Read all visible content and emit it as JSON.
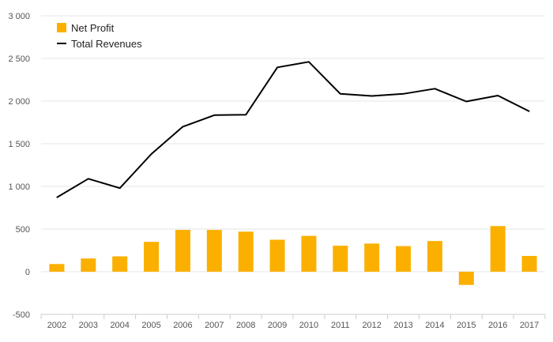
{
  "chart_data": {
    "type": "bar+line",
    "title": "",
    "xlabel": "",
    "ylabel": "",
    "categories": [
      "2002",
      "2003",
      "2004",
      "2005",
      "2006",
      "2007",
      "2008",
      "2009",
      "2010",
      "2011",
      "2012",
      "2013",
      "2014",
      "2015",
      "2016",
      "2017"
    ],
    "ylim": [
      -500,
      3000
    ],
    "yticks": [
      -500,
      0,
      500,
      1000,
      1500,
      2000,
      2500,
      3000
    ],
    "ytick_labels": [
      "-500",
      "0",
      "500",
      "1 000",
      "1 500",
      "2 000",
      "2 500",
      "3 000"
    ],
    "grid": true,
    "legend_position": "top-left",
    "series": [
      {
        "name": "Net Profit",
        "kind": "bar",
        "color": "#FBB000",
        "values": [
          90,
          155,
          180,
          350,
          490,
          490,
          470,
          375,
          420,
          305,
          330,
          300,
          360,
          -155,
          535,
          185
        ]
      },
      {
        "name": "Total Revenues",
        "kind": "line",
        "color": "#000000",
        "values": [
          870,
          1090,
          980,
          1380,
          1700,
          1835,
          1840,
          2395,
          2460,
          2085,
          2060,
          2085,
          2145,
          1995,
          2065,
          1880
        ]
      }
    ]
  }
}
